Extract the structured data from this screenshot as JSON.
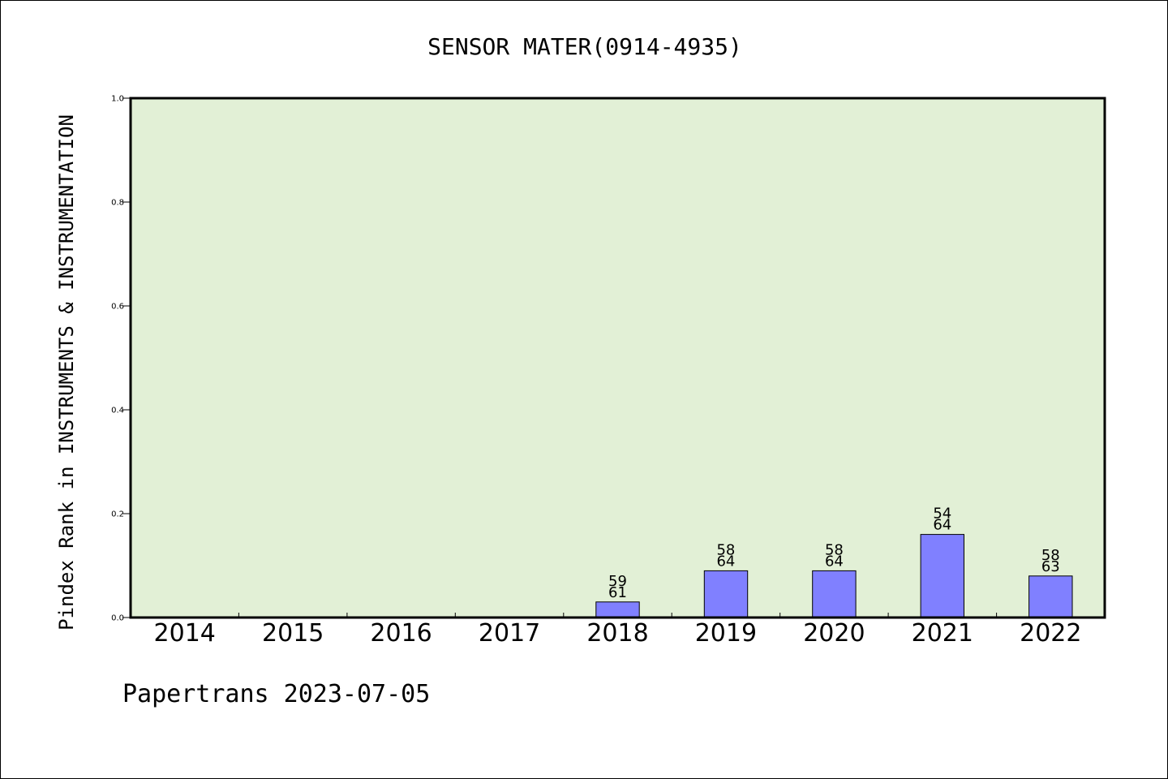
{
  "chart_data": {
    "type": "bar",
    "title": "SENSOR MATER(0914-4935)",
    "ylabel": "Pindex Rank in INSTRUMENTS & INSTRUMENTATION",
    "xlabel": "",
    "categories": [
      "2014",
      "2015",
      "2016",
      "2017",
      "2018",
      "2019",
      "2020",
      "2021",
      "2022"
    ],
    "values": [
      0,
      0,
      0,
      0,
      0.03,
      0.09,
      0.09,
      0.16,
      0.08
    ],
    "rank_labels": [
      "",
      "",
      "",
      "",
      "59",
      "58",
      "58",
      "54",
      "58"
    ],
    "total_labels": [
      "",
      "",
      "",
      "",
      "61",
      "64",
      "64",
      "64",
      "63"
    ],
    "ylim": [
      0,
      1.0
    ],
    "yticks": [
      "0.0",
      "0.2",
      "0.4",
      "0.6",
      "0.8",
      "1.0"
    ],
    "grid": false,
    "legend": "none",
    "colors": {
      "plot_background": "#e2f0d6",
      "bar_fill": "#8080ff",
      "bar_stroke": "#000000",
      "axis": "#000000"
    }
  },
  "footer": {
    "text": "Papertrans 2023-07-05"
  }
}
